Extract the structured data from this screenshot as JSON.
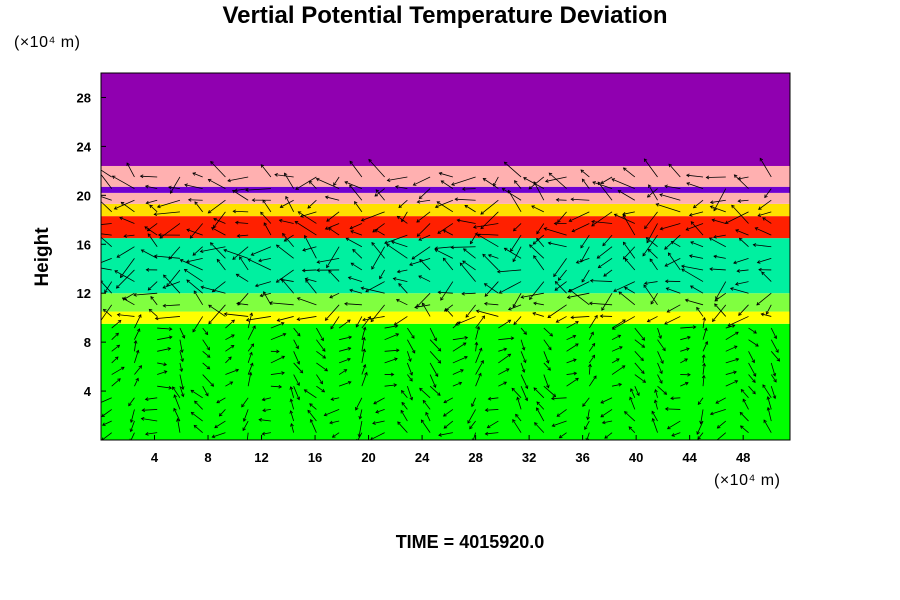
{
  "chart_data": {
    "type": "heatmap",
    "title": "Vertial Potential Temperature Deviation",
    "ylabel": "Height",
    "xlabel": "",
    "x_unit_label": "(×10⁴ m)",
    "y_unit_label": "(×10⁴ m)",
    "xlim": [
      0,
      51.5
    ],
    "ylim": [
      0,
      30
    ],
    "x_ticks": [
      4,
      8,
      12,
      16,
      20,
      24,
      28,
      32,
      36,
      40,
      44,
      48
    ],
    "x_tick_labels": [
      "4",
      "8",
      "12",
      "16",
      "20",
      "24",
      "28",
      "32",
      "36",
      "40",
      "44",
      "48"
    ],
    "y_ticks": [
      4,
      8,
      12,
      16,
      20,
      24,
      28
    ],
    "y_tick_labels": [
      "4",
      "8",
      "12",
      "16",
      "20",
      "24",
      "28"
    ],
    "overlay": "wind vectors",
    "layers": [
      {
        "y_from": 0,
        "y_to": 9.5,
        "color": "#00ff00"
      },
      {
        "y_from": 9.5,
        "y_to": 10.5,
        "color": "#ffff00"
      },
      {
        "y_from": 10.5,
        "y_to": 12,
        "color": "#80ff40"
      },
      {
        "y_from": 12,
        "y_to": 16.5,
        "color": "#00f0a0"
      },
      {
        "y_from": 16.5,
        "y_to": 18.3,
        "color": "#ff2000"
      },
      {
        "y_from": 18.3,
        "y_to": 19.3,
        "color": "#ffe000"
      },
      {
        "y_from": 19.3,
        "y_to": 20.2,
        "color": "#ffb0b0"
      },
      {
        "y_from": 20.2,
        "y_to": 20.7,
        "color": "#7000d0"
      },
      {
        "y_from": 20.7,
        "y_to": 22.4,
        "color": "#ffb0b0"
      },
      {
        "y_from": 22.4,
        "y_to": 30,
        "color": "#9000b0"
      }
    ]
  },
  "footer": {
    "time_label": "TIME = 4015920.0"
  }
}
